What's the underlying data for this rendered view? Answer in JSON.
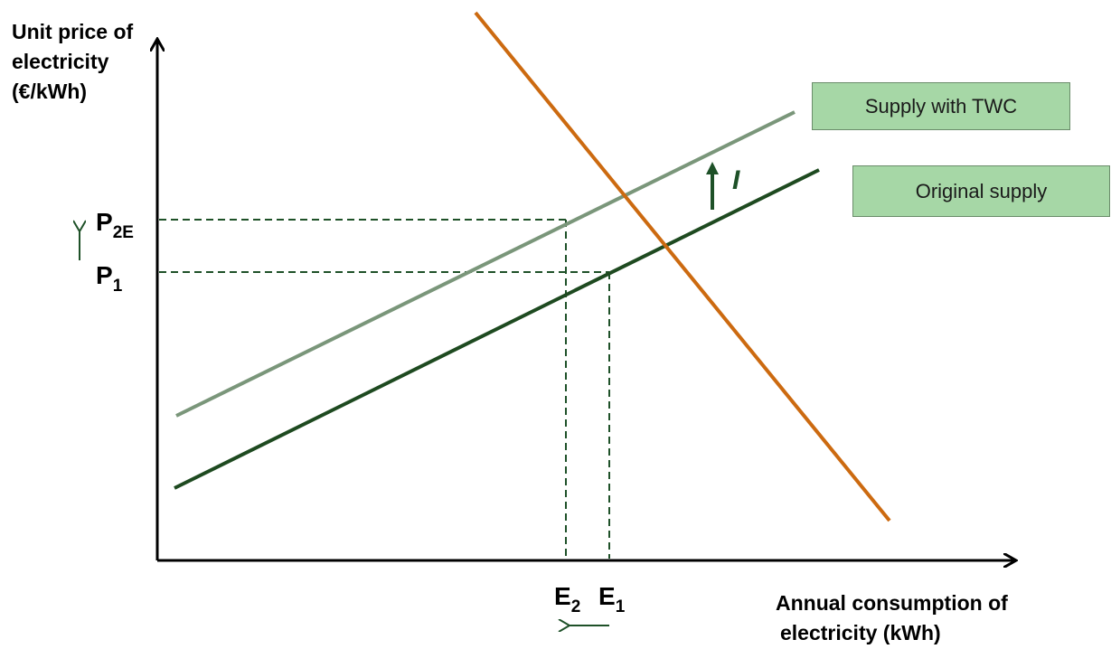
{
  "diagram": {
    "y_axis_title": [
      "Unit price of",
      "electricity",
      "(€/kWh)"
    ],
    "x_axis_title": [
      "Annual consumption of",
      "electricity (kWh)"
    ],
    "price_labels": [
      {
        "main": "P",
        "sub": "2E"
      },
      {
        "main": "P",
        "sub": "1"
      }
    ],
    "quantity_labels": [
      {
        "main": "E",
        "sub": "2"
      },
      {
        "main": "E",
        "sub": "1"
      }
    ],
    "legend": {
      "supply_with_twc": "Supply with TWC",
      "original_supply": "Original supply"
    },
    "shift_label": "I",
    "colors": {
      "original_supply": "#1e4a20",
      "supply_with_twc": "#7a967a",
      "demand": "#cc6a10",
      "legend_fill": "#a6d7a6",
      "guide_lines": "#1e5128",
      "arrows": "#1e5128"
    }
  }
}
